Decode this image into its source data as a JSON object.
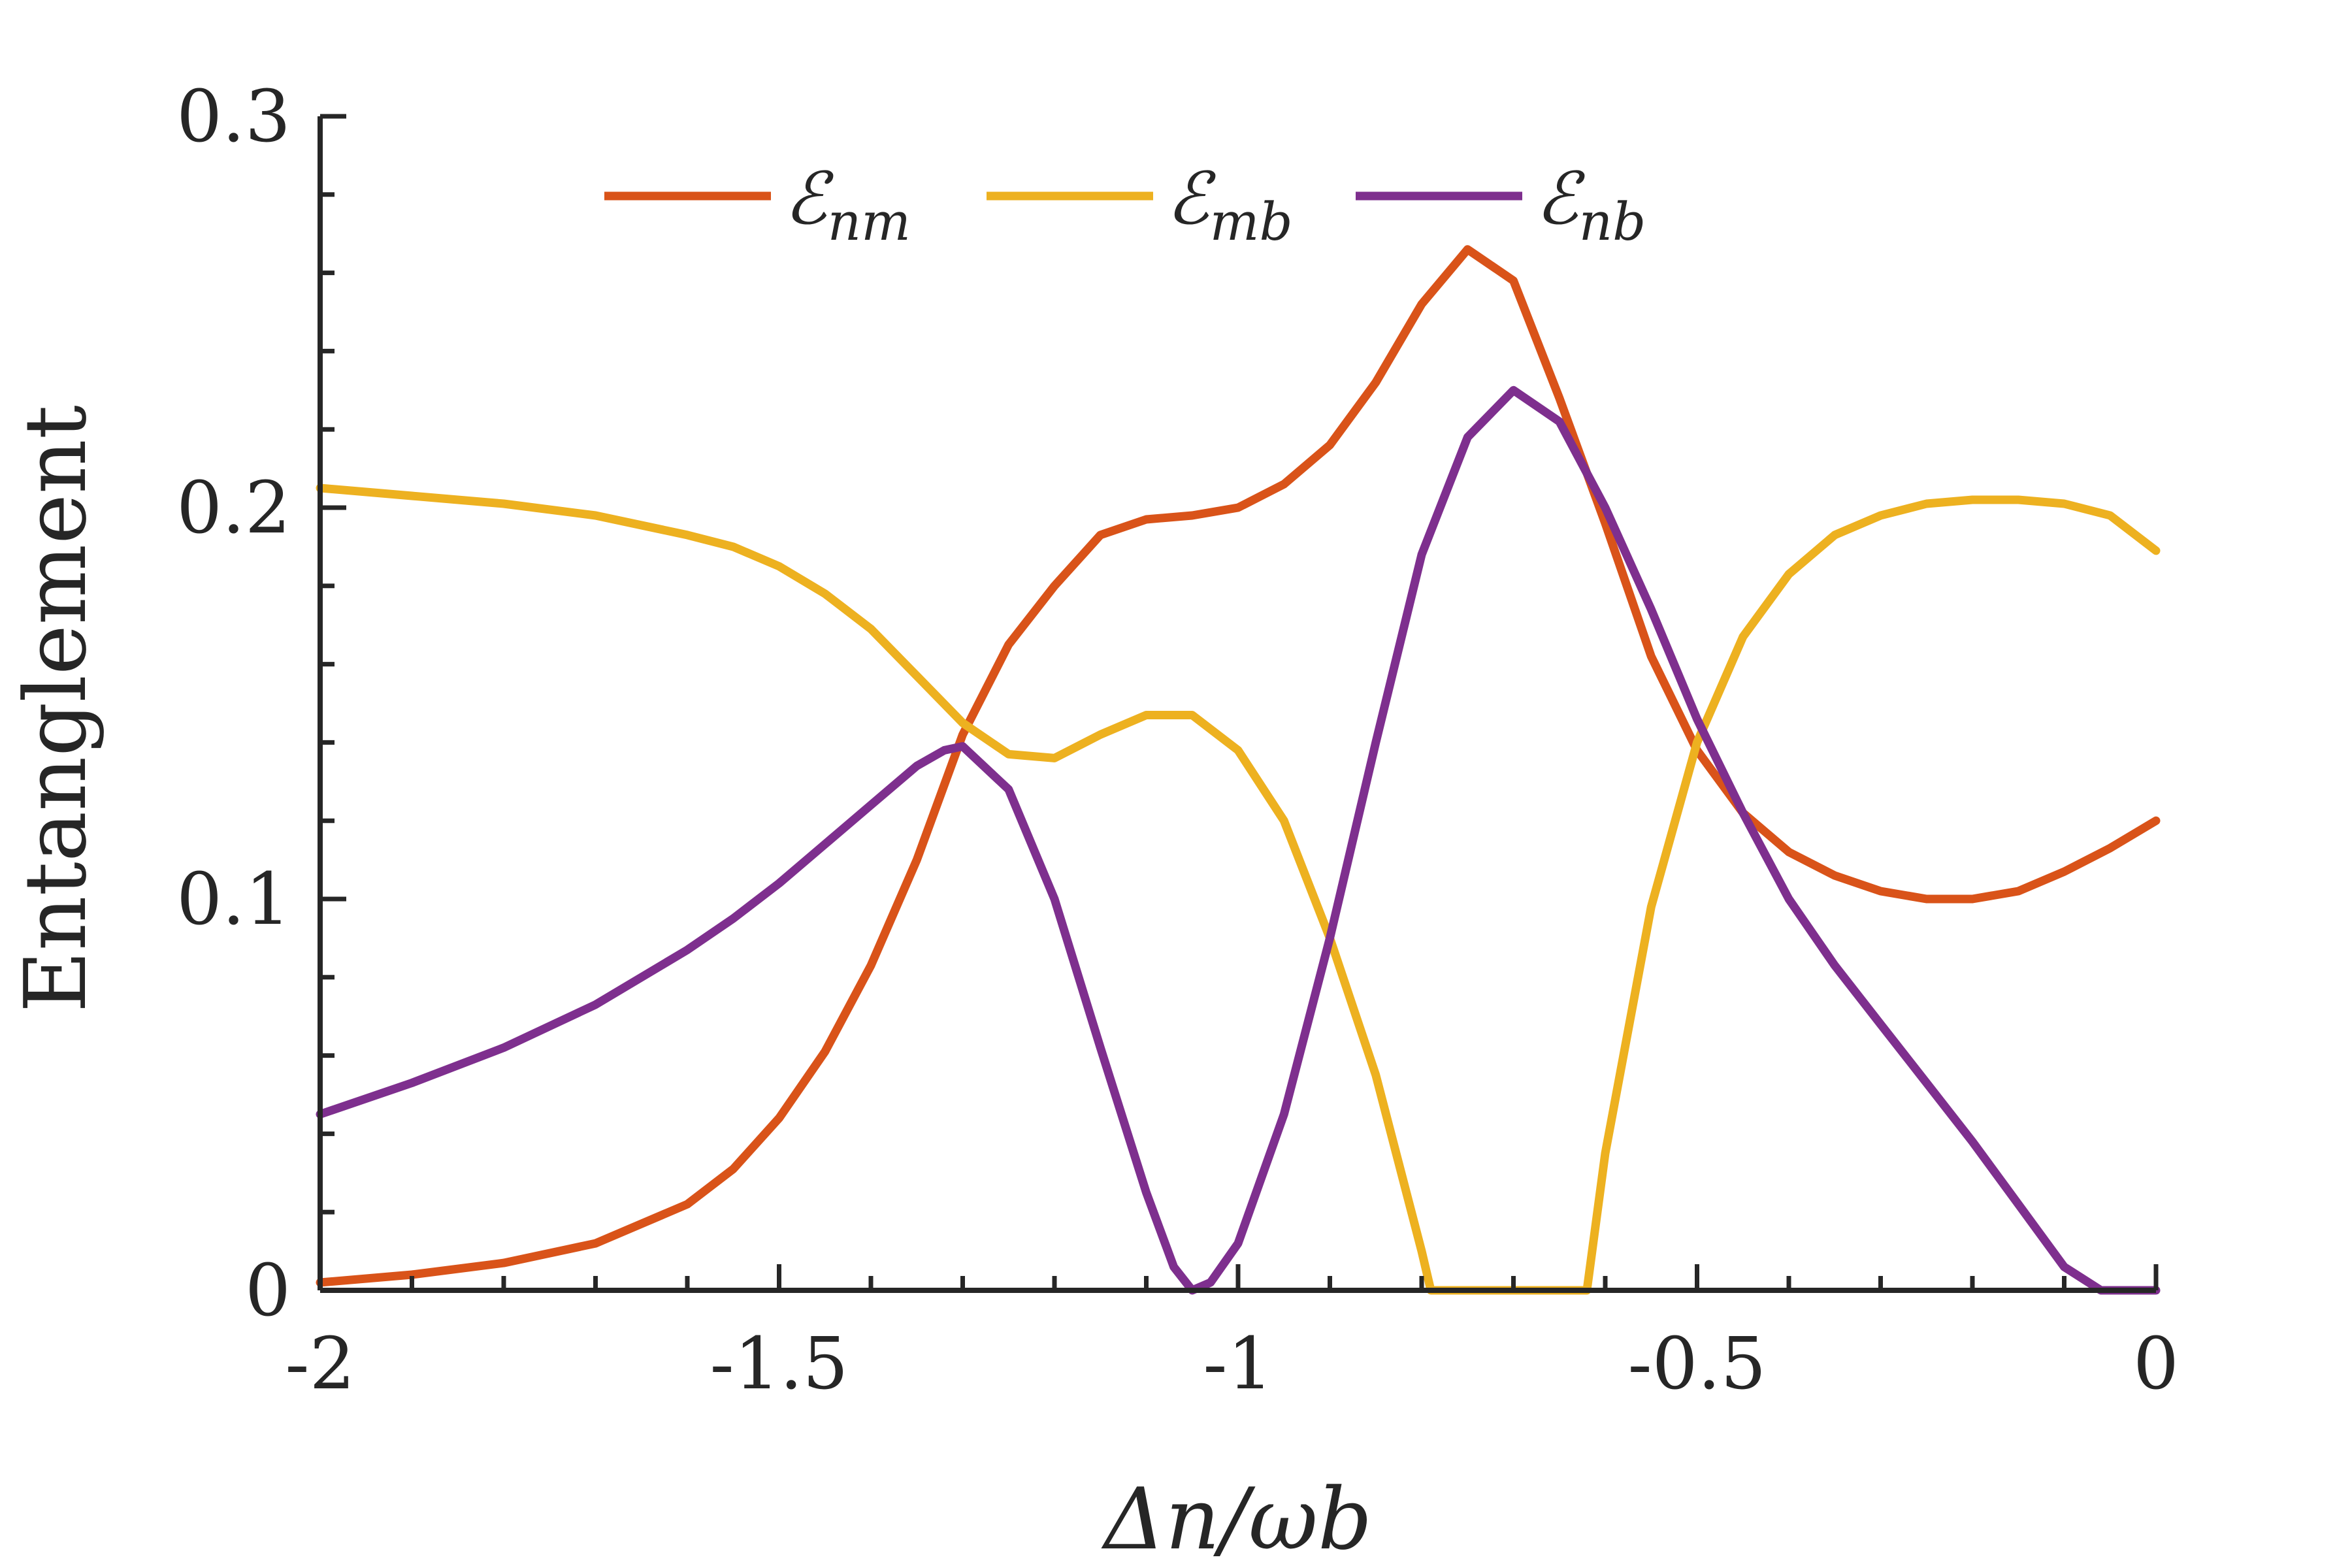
{
  "chart_data": {
    "type": "line",
    "title": "",
    "xlabel": "Δn/ωb",
    "ylabel": "Entanglement",
    "xlim": [
      -2,
      0
    ],
    "ylim": [
      0,
      0.3
    ],
    "xticks": [
      -2,
      -1.5,
      -1,
      -0.5,
      0
    ],
    "xtick_labels": [
      "-2",
      "-1.5",
      "-1",
      "-0.5",
      "0"
    ],
    "yticks": [
      0,
      0.1,
      0.2,
      0.3
    ],
    "ytick_labels": [
      "0",
      "0.1",
      "0.2",
      "0.3"
    ],
    "grid": false,
    "legend_position": "top",
    "series": [
      {
        "name": "Enm",
        "label_main": "ℰ",
        "label_sub": "nm",
        "color": "#D95319",
        "points": [
          [
            -2.0,
            0.002
          ],
          [
            -1.9,
            0.004
          ],
          [
            -1.8,
            0.007
          ],
          [
            -1.7,
            0.012
          ],
          [
            -1.6,
            0.022
          ],
          [
            -1.55,
            0.031
          ],
          [
            -1.5,
            0.044
          ],
          [
            -1.45,
            0.061
          ],
          [
            -1.4,
            0.083
          ],
          [
            -1.35,
            0.11
          ],
          [
            -1.3,
            0.142
          ],
          [
            -1.25,
            0.165
          ],
          [
            -1.2,
            0.18
          ],
          [
            -1.15,
            0.193
          ],
          [
            -1.1,
            0.197
          ],
          [
            -1.05,
            0.198
          ],
          [
            -1.0,
            0.2
          ],
          [
            -0.95,
            0.206
          ],
          [
            -0.9,
            0.216
          ],
          [
            -0.85,
            0.232
          ],
          [
            -0.8,
            0.252
          ],
          [
            -0.75,
            0.266
          ],
          [
            -0.7,
            0.258
          ],
          [
            -0.65,
            0.228
          ],
          [
            -0.6,
            0.196
          ],
          [
            -0.55,
            0.162
          ],
          [
            -0.5,
            0.138
          ],
          [
            -0.45,
            0.122
          ],
          [
            -0.4,
            0.112
          ],
          [
            -0.35,
            0.106
          ],
          [
            -0.3,
            0.102
          ],
          [
            -0.25,
            0.1
          ],
          [
            -0.2,
            0.1
          ],
          [
            -0.15,
            0.102
          ],
          [
            -0.1,
            0.107
          ],
          [
            -0.05,
            0.113
          ],
          [
            0.0,
            0.12
          ]
        ]
      },
      {
        "name": "Emb",
        "label_main": "ℰ",
        "label_sub": "mb",
        "color": "#EDB120",
        "points": [
          [
            -2.0,
            0.205
          ],
          [
            -1.9,
            0.203
          ],
          [
            -1.8,
            0.201
          ],
          [
            -1.7,
            0.198
          ],
          [
            -1.6,
            0.193
          ],
          [
            -1.55,
            0.19
          ],
          [
            -1.5,
            0.185
          ],
          [
            -1.45,
            0.178
          ],
          [
            -1.4,
            0.169
          ],
          [
            -1.35,
            0.157
          ],
          [
            -1.3,
            0.145
          ],
          [
            -1.25,
            0.137
          ],
          [
            -1.2,
            0.136
          ],
          [
            -1.15,
            0.142
          ],
          [
            -1.1,
            0.147
          ],
          [
            -1.05,
            0.147
          ],
          [
            -1.0,
            0.138
          ],
          [
            -0.95,
            0.12
          ],
          [
            -0.9,
            0.09
          ],
          [
            -0.85,
            0.055
          ],
          [
            -0.8,
            0.01
          ],
          [
            -0.79,
            0.0
          ],
          [
            -0.62,
            0.0
          ],
          [
            -0.6,
            0.035
          ],
          [
            -0.55,
            0.098
          ],
          [
            -0.5,
            0.14
          ],
          [
            -0.45,
            0.167
          ],
          [
            -0.4,
            0.183
          ],
          [
            -0.35,
            0.193
          ],
          [
            -0.3,
            0.198
          ],
          [
            -0.25,
            0.201
          ],
          [
            -0.2,
            0.202
          ],
          [
            -0.15,
            0.202
          ],
          [
            -0.1,
            0.201
          ],
          [
            -0.05,
            0.198
          ],
          [
            0.0,
            0.189
          ]
        ]
      },
      {
        "name": "Enb",
        "label_main": "ℰ",
        "label_sub": "nb",
        "color": "#7E2F8E",
        "points": [
          [
            -2.0,
            0.045
          ],
          [
            -1.9,
            0.053
          ],
          [
            -1.8,
            0.062
          ],
          [
            -1.7,
            0.073
          ],
          [
            -1.6,
            0.087
          ],
          [
            -1.55,
            0.095
          ],
          [
            -1.5,
            0.104
          ],
          [
            -1.45,
            0.114
          ],
          [
            -1.4,
            0.124
          ],
          [
            -1.35,
            0.134
          ],
          [
            -1.32,
            0.138
          ],
          [
            -1.3,
            0.139
          ],
          [
            -1.25,
            0.128
          ],
          [
            -1.2,
            0.1
          ],
          [
            -1.15,
            0.062
          ],
          [
            -1.1,
            0.025
          ],
          [
            -1.07,
            0.006
          ],
          [
            -1.05,
            0.0
          ],
          [
            -1.03,
            0.002
          ],
          [
            -1.0,
            0.012
          ],
          [
            -0.95,
            0.045
          ],
          [
            -0.9,
            0.09
          ],
          [
            -0.85,
            0.14
          ],
          [
            -0.8,
            0.188
          ],
          [
            -0.75,
            0.218
          ],
          [
            -0.7,
            0.23
          ],
          [
            -0.65,
            0.222
          ],
          [
            -0.6,
            0.2
          ],
          [
            -0.55,
            0.174
          ],
          [
            -0.5,
            0.146
          ],
          [
            -0.45,
            0.122
          ],
          [
            -0.4,
            0.1
          ],
          [
            -0.35,
            0.083
          ],
          [
            -0.3,
            0.068
          ],
          [
            -0.25,
            0.053
          ],
          [
            -0.2,
            0.038
          ],
          [
            -0.15,
            0.022
          ],
          [
            -0.1,
            0.006
          ],
          [
            -0.06,
            0.0
          ],
          [
            0.0,
            0.0
          ]
        ]
      }
    ]
  }
}
